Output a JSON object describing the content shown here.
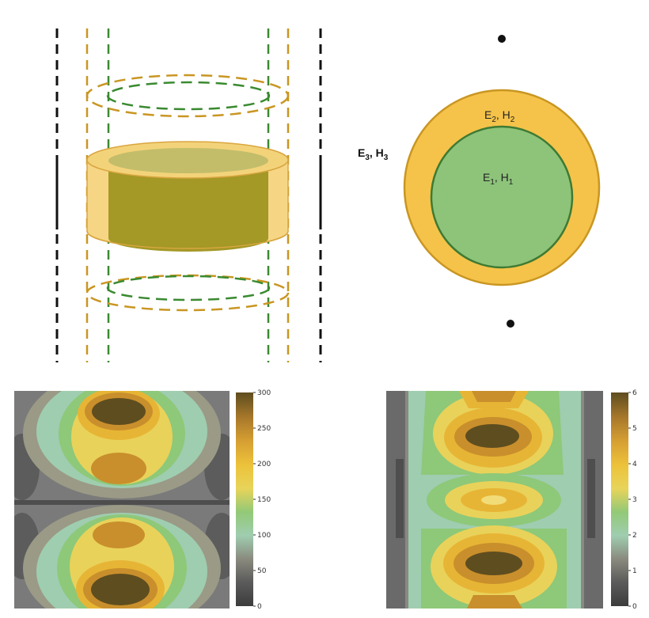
{
  "labels": {
    "layer1": {
      "base": "E",
      "sub1": "1",
      "sep": ", H",
      "sub2": "1"
    },
    "layer2": {
      "base": "E",
      "sub1": "2",
      "sep": ", H",
      "sub2": "2"
    },
    "layer3": {
      "base": "E",
      "sub1": "3",
      "sep": ", H",
      "sub2": "3"
    }
  },
  "colors": {
    "inner_green": "#8dc47a",
    "inner_stroke": "#3f7a33",
    "shell_yellow": "#f5c34a",
    "shell_stroke": "#c99622",
    "dash_black": "#111111",
    "dash_orange": "#c99622",
    "dash_green": "#3a8a30"
  },
  "colorbar_left": {
    "ticks": [
      "300",
      "250",
      "200",
      "150",
      "100",
      "50",
      "0"
    ],
    "range": [
      0,
      300
    ]
  },
  "colorbar_right": {
    "ticks": [
      "6",
      "5",
      "4",
      "3",
      "2",
      "1",
      "0"
    ],
    "range": [
      0,
      6
    ]
  },
  "contour_palette": [
    "#5a5a5a",
    "#767676",
    "#9a9a86",
    "#9fcdb0",
    "#8ec879",
    "#e9d25a",
    "#e7b535",
    "#c98f2c",
    "#5e4d1f"
  ]
}
